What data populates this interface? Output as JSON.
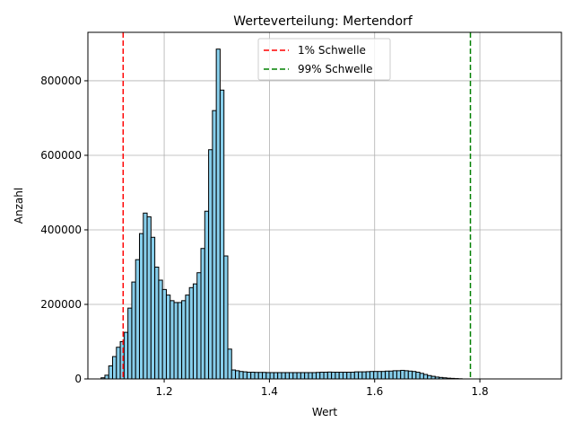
{
  "chart_data": {
    "type": "bar",
    "title": "Werteverteilung: Mertendorf",
    "xlabel": "Wert",
    "ylabel": "Anzahl",
    "xlim": [
      1.055,
      1.955
    ],
    "ylim": [
      0,
      930000
    ],
    "xticks": [
      1.2,
      1.4,
      1.6,
      1.8
    ],
    "xtick_labels": [
      "1.2",
      "1.4",
      "1.6",
      "1.8"
    ],
    "yticks": [
      0,
      200000,
      400000,
      600000,
      800000
    ],
    "ytick_labels": [
      "0",
      "200000",
      "400000",
      "600000",
      "800000"
    ],
    "grid": true,
    "legend_position": "upper-center",
    "bar_color": "#87ceeb",
    "bin_start": 1.08,
    "bin_width": 0.0073,
    "values": [
      3000,
      10000,
      35000,
      60000,
      85000,
      100000,
      125000,
      190000,
      260000,
      320000,
      390000,
      445000,
      435000,
      380000,
      300000,
      265000,
      240000,
      225000,
      210000,
      205000,
      205000,
      210000,
      225000,
      245000,
      255000,
      285000,
      350000,
      450000,
      615000,
      720000,
      885000,
      775000,
      330000,
      80000,
      24000,
      22000,
      20000,
      19000,
      18000,
      18000,
      17500,
      17500,
      17500,
      17000,
      17000,
      17000,
      17000,
      17000,
      17000,
      17000,
      17000,
      17000,
      17000,
      17000,
      17000,
      17000,
      17500,
      18000,
      18000,
      18500,
      18000,
      18000,
      18000,
      18000,
      18000,
      18000,
      19000,
      19000,
      19000,
      19500,
      20000,
      20000,
      20000,
      20000,
      21000,
      21000,
      22000,
      22000,
      23000,
      22000,
      21000,
      20000,
      18000,
      15000,
      12000,
      9000,
      7000,
      5000,
      4000,
      3000,
      2000,
      1500,
      1000,
      500
    ],
    "thresholds": [
      {
        "name": "1% Schwelle",
        "x": 1.122,
        "color": "#ff0000"
      },
      {
        "name": "99% Schwelle",
        "x": 1.782,
        "color": "#008000"
      }
    ]
  }
}
